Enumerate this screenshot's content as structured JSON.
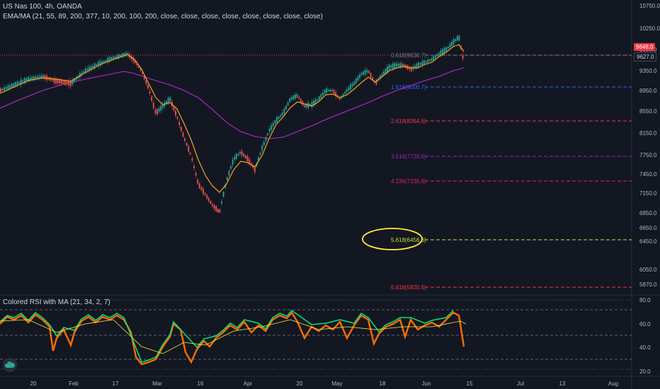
{
  "header": {
    "symbol_line": "US Nas 100, 4h, OANDA",
    "indicator_line": "EMA/MA (21, 55, 89, 200, 377, 10, 200, 100, 200, close, close, close, close, close, close, close, close)"
  },
  "rsi_panel": {
    "title": "Colored RSI with MA (21, 34, 2, 7)"
  },
  "price_axis": {
    "ticks": [
      "10750.0",
      "10250.0",
      "9950.0",
      "9350.0",
      "8950.0",
      "8550.0",
      "8150.0",
      "7750.0",
      "7450.0",
      "7150.0",
      "6850.0",
      "6650.0",
      "6450.0",
      "6050.0",
      "5870.0"
    ],
    "current_price_tag": "9648.0",
    "last_price_tag": "9627.0"
  },
  "rsi_axis": {
    "ticks": [
      "80.0",
      "60.0",
      "40.0",
      "20.0"
    ]
  },
  "time_axis": {
    "labels": [
      "20",
      "Feb",
      "17",
      "Mar",
      "16",
      "Apr",
      "20",
      "May",
      "18",
      "Jun",
      "15",
      "Jul",
      "13",
      "Aug"
    ]
  },
  "fib_levels": [
    {
      "label": "0.618(9636.7)",
      "color": "#787b86"
    },
    {
      "label": "1.618(9000.7)",
      "color": "#2962ff"
    },
    {
      "label": "2.618(8364.6)",
      "color": "#f23645"
    },
    {
      "label": "3.618(7728.6)",
      "color": "#9c27b0"
    },
    {
      "label": "4.236(7335.6)",
      "color": "#e91e63"
    },
    {
      "label": "5.618(6456.6)",
      "color": "#cddc39"
    },
    {
      "label": "6.618(5820.6)",
      "color": "#f23645"
    }
  ],
  "colors": {
    "background": "#131722",
    "up_candle": "#26a69a",
    "down_candle": "#ef5350",
    "ema_fast": "#f7a21b",
    "ma_slow": "#9c27b0",
    "rsi_up": "#00e676",
    "rsi_down": "#ff6d00",
    "highlight_circle": "#ffeb3b"
  },
  "icons": {
    "logo": "tradingview-cloud-icon"
  }
}
